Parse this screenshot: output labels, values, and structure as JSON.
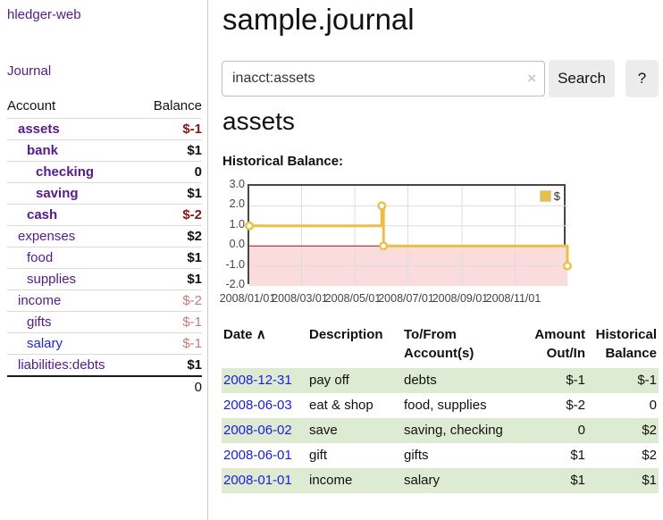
{
  "app": {
    "brand": "hledger-web"
  },
  "colors": {
    "link_purple": "#551a8b",
    "link_blue": "#2323d6",
    "negative_strong": "#8b1414",
    "negative_faded": "#c47c7c",
    "row_green": "#dcebd2",
    "chart_line_gold": "#e9c043",
    "chart_negative_region": "#fbdcdc",
    "chart_zero_line": "#8b1a1a"
  },
  "sidebar": {
    "nav": {
      "journal_label": "Journal"
    },
    "accounts": {
      "headers": {
        "account": "Account",
        "balance": "Balance"
      },
      "rows": [
        {
          "name": "assets",
          "balance": "$-1",
          "depth": 1,
          "match": true,
          "neg": "strong",
          "link": "purple"
        },
        {
          "name": "bank",
          "balance": "$1",
          "depth": 2,
          "match": true,
          "neg": null,
          "link": "purple"
        },
        {
          "name": "checking",
          "balance": "0",
          "depth": 3,
          "match": true,
          "neg": null,
          "link": "purple"
        },
        {
          "name": "saving",
          "balance": "$1",
          "depth": 3,
          "match": true,
          "neg": null,
          "link": "purple"
        },
        {
          "name": "cash",
          "balance": "$-2",
          "depth": 2,
          "match": true,
          "neg": "strong",
          "link": "purple"
        },
        {
          "name": "expenses",
          "balance": "$2",
          "depth": 1,
          "match": false,
          "neg": null,
          "link": "purple"
        },
        {
          "name": "food",
          "balance": "$1",
          "depth": 2,
          "match": false,
          "neg": null,
          "link": "purple"
        },
        {
          "name": "supplies",
          "balance": "$1",
          "depth": 2,
          "match": false,
          "neg": null,
          "link": "purple"
        },
        {
          "name": "income",
          "balance": "$-2",
          "depth": 1,
          "match": false,
          "neg": "faded",
          "link": "purple"
        },
        {
          "name": "gifts",
          "balance": "$-1",
          "depth": 2,
          "match": false,
          "neg": "faded",
          "link": "purple"
        },
        {
          "name": "salary",
          "balance": "$-1",
          "depth": 2,
          "match": false,
          "neg": "faded",
          "link": "blue"
        },
        {
          "name": "liabilities:debts",
          "balance": "$1",
          "depth": 1,
          "match": false,
          "neg": null,
          "link": "purple"
        }
      ],
      "total": "0"
    }
  },
  "main": {
    "title": "sample.journal",
    "search": {
      "value": "inacct:assets",
      "clear_icon": "×",
      "search_label": "Search",
      "help_label": "?"
    },
    "account_heading": "assets",
    "chart_heading": "Historical Balance:"
  },
  "chart_data": {
    "type": "line",
    "title": "Historical Balance:",
    "step": true,
    "series": [
      {
        "name": "$",
        "color": "#e9c043",
        "points": [
          [
            "2008-01-01",
            1
          ],
          [
            "2008-06-01",
            2
          ],
          [
            "2008-06-03",
            0
          ],
          [
            "2008-12-31",
            -1
          ]
        ]
      }
    ],
    "x_range": [
      "2008-01-01",
      "2008-12-31"
    ],
    "ylim": [
      -2,
      3
    ],
    "yticks": [
      "3.0",
      "2.0",
      "1.0",
      "0.0",
      "-1.0",
      "-2.0"
    ],
    "ytick_values": [
      3,
      2,
      1,
      0,
      -1,
      -2
    ],
    "xticks": [
      {
        "label": "2008/01/01",
        "date": "2008-01-01"
      },
      {
        "label": "2008/03/01",
        "date": "2008-03-01"
      },
      {
        "label": "2008/05/01",
        "date": "2008-05-01"
      },
      {
        "label": "2008/07/01",
        "date": "2008-07-01"
      },
      {
        "label": "2008/09/01",
        "date": "2008-09-01"
      },
      {
        "label": "2008/11/01",
        "date": "2008-11-01"
      }
    ],
    "grid": true,
    "legend_position": "top-right",
    "negative_region_shaded": true
  },
  "register": {
    "headers": {
      "date": "Date",
      "sort_icon": "∧",
      "description": "Description",
      "accounts": "To/From Account(s)",
      "amount": "Amount Out/In",
      "balance": "Historical Balance"
    },
    "rows": [
      {
        "date": "2008-12-31",
        "description": "pay off",
        "accounts": "debts",
        "amount": "$-1",
        "balance": "$-1"
      },
      {
        "date": "2008-06-03",
        "description": "eat & shop",
        "accounts": "food, supplies",
        "amount": "$-2",
        "balance": "0"
      },
      {
        "date": "2008-06-02",
        "description": "save",
        "accounts": "saving, checking",
        "amount": "0",
        "balance": "$2"
      },
      {
        "date": "2008-06-01",
        "description": "gift",
        "accounts": "gifts",
        "amount": "$1",
        "balance": "$2"
      },
      {
        "date": "2008-01-01",
        "description": "income",
        "accounts": "salary",
        "amount": "$1",
        "balance": "$1"
      }
    ]
  }
}
